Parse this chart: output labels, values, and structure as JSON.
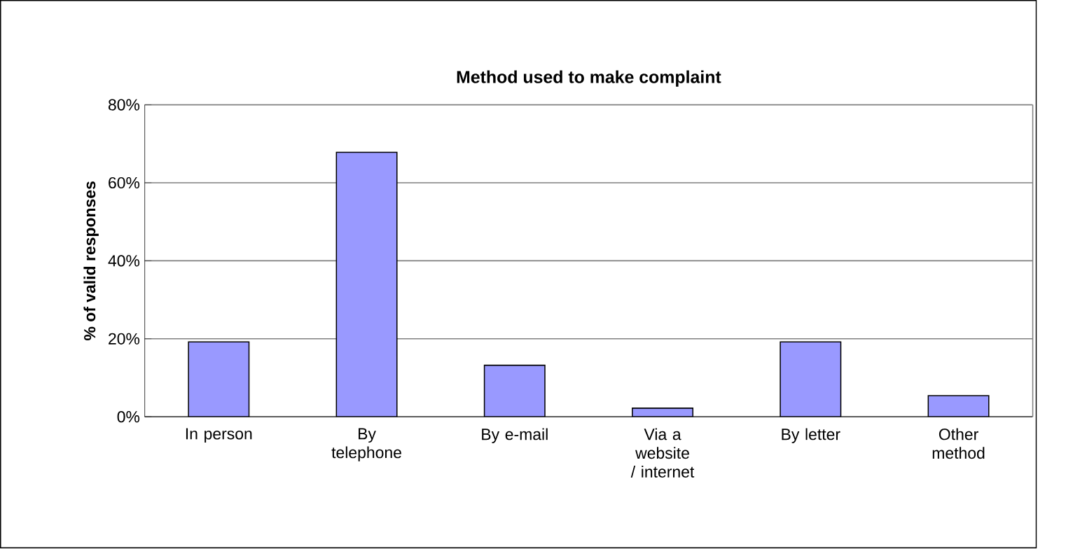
{
  "chart_data": {
    "type": "bar",
    "title": "Method used to make complaint",
    "ylabel": "% of valid responses",
    "categories": [
      "In person",
      "By telephone",
      "By e-mail",
      "Via a website / internet",
      "By letter",
      "Other method"
    ],
    "values": [
      19.2,
      67.8,
      13.2,
      2.2,
      19.2,
      5.4
    ],
    "color": "#9999ff",
    "ylim": [
      0,
      80
    ],
    "yticks": [
      {
        "value": 0,
        "label": "0%"
      },
      {
        "value": 20,
        "label": "20%"
      },
      {
        "value": 40,
        "label": "40%"
      },
      {
        "value": 60,
        "label": "60%"
      },
      {
        "value": 80,
        "label": "80%"
      }
    ],
    "grid": "y"
  }
}
